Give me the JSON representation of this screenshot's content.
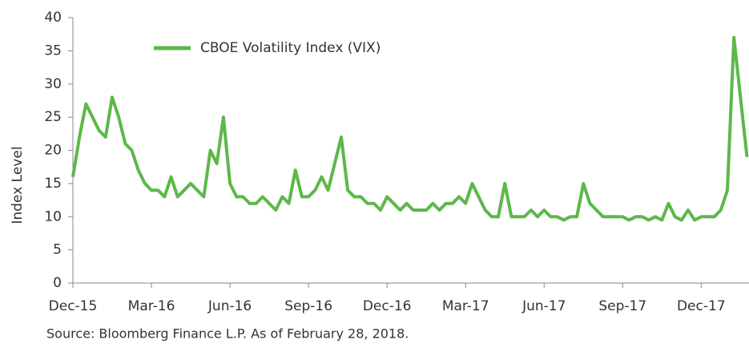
{
  "chart_data": {
    "type": "line",
    "y_label": "Index Level",
    "source": "Source: Bloomberg Finance L.P. As of February 28, 2018.",
    "categories": [
      "Dec-15",
      null,
      null,
      null,
      null,
      null,
      null,
      null,
      null,
      null,
      null,
      null,
      "Mar-16",
      null,
      null,
      null,
      null,
      null,
      null,
      null,
      null,
      null,
      null,
      null,
      "Jun-16",
      null,
      null,
      null,
      null,
      null,
      null,
      null,
      null,
      null,
      null,
      null,
      "Sep-16",
      null,
      null,
      null,
      null,
      null,
      null,
      null,
      null,
      null,
      null,
      null,
      "Dec-16",
      null,
      null,
      null,
      null,
      null,
      null,
      null,
      null,
      null,
      null,
      null,
      "Mar-17",
      null,
      null,
      null,
      null,
      null,
      null,
      null,
      null,
      null,
      null,
      null,
      "Jun-17",
      null,
      null,
      null,
      null,
      null,
      null,
      null,
      null,
      null,
      null,
      null,
      "Sep-17",
      null,
      null,
      null,
      null,
      null,
      null,
      null,
      null,
      null,
      null,
      null,
      "Dec-17",
      null,
      null,
      null,
      null,
      null,
      null,
      null
    ],
    "series": [
      {
        "name": "CBOE Volatility Index (VIX)",
        "color": "#5cb84a",
        "values": [
          16,
          22,
          27,
          25,
          23,
          22,
          28,
          25,
          21,
          20,
          17,
          15,
          14,
          14,
          13,
          16,
          13,
          14,
          15,
          14,
          13,
          20,
          18,
          25,
          15,
          13,
          13,
          12,
          12,
          13,
          12,
          11,
          13,
          12,
          17,
          13,
          13,
          14,
          16,
          14,
          18,
          22,
          14,
          13,
          13,
          12,
          12,
          11,
          13,
          12,
          11,
          12,
          11,
          11,
          11,
          12,
          11,
          12,
          12,
          13,
          12,
          15,
          13,
          11,
          10,
          10,
          15,
          10,
          10,
          10,
          11,
          10,
          11,
          10,
          10,
          9.5,
          10,
          10,
          15,
          12,
          11,
          10,
          10,
          10,
          10,
          9.5,
          10,
          10,
          9.5,
          10,
          9.5,
          12,
          10,
          9.5,
          11,
          9.5,
          10,
          10,
          10,
          11,
          14,
          37,
          28,
          19
        ]
      }
    ],
    "ylim": [
      0,
      40
    ],
    "yticks": [
      0,
      5,
      10,
      15,
      20,
      25,
      30,
      35,
      40
    ],
    "legend": "top-left"
  }
}
